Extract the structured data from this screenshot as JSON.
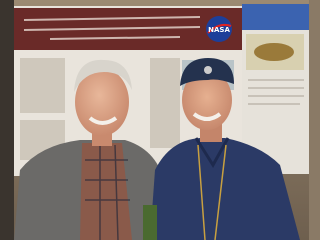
{
  "image": {
    "logo_text": "NASA"
  }
}
